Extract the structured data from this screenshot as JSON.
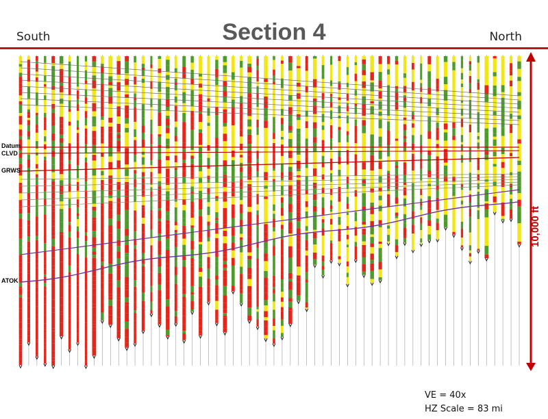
{
  "title": "Section 4",
  "left_direction": "South",
  "right_direction": "North",
  "formation_labels": [
    {
      "name": "Datum",
      "color": "#c00000"
    },
    {
      "name": "CLVD",
      "color": "#c00000"
    },
    {
      "name": "GRWS",
      "color": "#c00000"
    },
    {
      "name": "ATOK",
      "color": "#7030a0"
    }
  ],
  "vertical_scale_label": "10,000 ft",
  "notes": {
    "vertical_exaggeration": "VE = 40x",
    "horizontal_scale": "HZ Scale = 83 mi"
  },
  "colors": {
    "title": "#595959",
    "rule": "#b11b1b",
    "scale_arrow": "#c00000",
    "log_yellow": "#f2e51a",
    "log_green": "#4f9a2c",
    "log_red": "#e32619",
    "atok_line": "#7030a0",
    "clvd_line": "#c00000",
    "well_line": "#9a9a9a"
  }
}
